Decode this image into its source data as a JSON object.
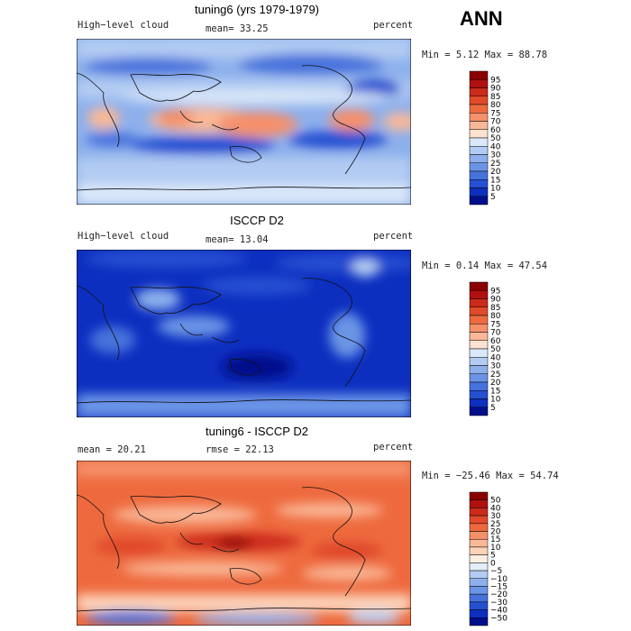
{
  "season": "ANN",
  "panels": [
    {
      "title": "tuning6 (yrs 1979-1979)",
      "left_label": "High−level cloud",
      "center_label": "mean=  33.25",
      "right_label": "percent",
      "stats": "Min =   5.12 Max =  88.78",
      "colorbar": {
        "labels": [
          "95",
          "90",
          "85",
          "80",
          "75",
          "70",
          "60",
          "50",
          "40",
          "30",
          "25",
          "20",
          "15",
          "10",
          "5"
        ],
        "colors": [
          "#8b0000",
          "#b01010",
          "#cc2a1a",
          "#e04a2a",
          "#ee6a3e",
          "#f6906a",
          "#fab898",
          "#fde2d0",
          "#dae8f8",
          "#b3ccf3",
          "#8db0ec",
          "#6a94e6",
          "#4672dc",
          "#2550d2",
          "#0d2fc0",
          "#000e8c"
        ]
      }
    },
    {
      "title": "ISCCP D2",
      "left_label": "High−level cloud",
      "center_label": "mean=  13.04",
      "right_label": "percent",
      "stats": "Min =   0.14 Max =  47.54",
      "colorbar": {
        "labels": [
          "95",
          "90",
          "85",
          "80",
          "75",
          "70",
          "60",
          "50",
          "40",
          "30",
          "25",
          "20",
          "15",
          "10",
          "5"
        ],
        "colors": [
          "#8b0000",
          "#b01010",
          "#cc2a1a",
          "#e04a2a",
          "#ee6a3e",
          "#f6906a",
          "#fab898",
          "#fde2d0",
          "#dae8f8",
          "#b3ccf3",
          "#8db0ec",
          "#6a94e6",
          "#4672dc",
          "#2550d2",
          "#0d2fc0",
          "#000e8c"
        ]
      }
    },
    {
      "title": "tuning6 - ISCCP D2",
      "left_label": "mean =  20.21",
      "center_label": "rmse =  22.13",
      "right_label": "percent",
      "stats": "Min = −25.46 Max =  54.74",
      "colorbar": {
        "labels": [
          "50",
          "40",
          "30",
          "25",
          "20",
          "15",
          "10",
          "5",
          "0",
          "−5",
          "−10",
          "−15",
          "−20",
          "−30",
          "−40",
          "−50"
        ],
        "colors": [
          "#8b0000",
          "#b01010",
          "#cc2a1a",
          "#e04a2a",
          "#ee6a3e",
          "#f6906a",
          "#fab898",
          "#fcd2b8",
          "#fdeee4",
          "#e4eefa",
          "#b3ccf3",
          "#8db0ec",
          "#6a94e6",
          "#4672dc",
          "#2550d2",
          "#0d2fc0",
          "#000e8c"
        ]
      }
    }
  ]
}
